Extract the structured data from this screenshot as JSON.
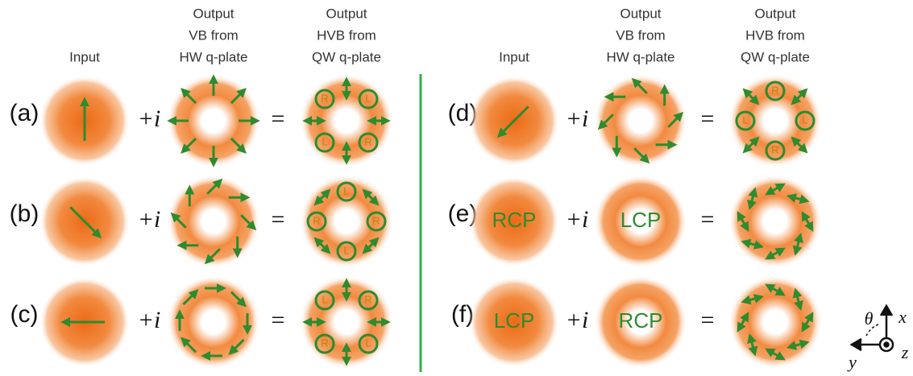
{
  "panels": [
    {
      "headers": [
        [
          "Input"
        ],
        [
          "Output",
          "VB from",
          "HW q-plate"
        ],
        [
          "Output",
          "HVB from",
          "QW q-plate"
        ]
      ],
      "rows": [
        {
          "label": "(a)",
          "plus": "+i",
          "equals": "=",
          "hvb_labels": [
            "R",
            "L",
            "L",
            "R"
          ]
        },
        {
          "label": "(b)",
          "plus": "+i",
          "equals": "=",
          "hvb_labels": [
            "L",
            "R",
            "L",
            "R"
          ]
        },
        {
          "label": "(c)",
          "plus": "+i",
          "equals": "=",
          "hvb_labels": [
            "L",
            "R",
            "R",
            "L"
          ]
        }
      ]
    },
    {
      "headers": [
        [
          "Input"
        ],
        [
          "Output",
          "VB from",
          "HW q-plate"
        ],
        [
          "Output",
          "HVB from",
          "QW q-plate"
        ]
      ],
      "rows": [
        {
          "label": "(d)",
          "plus": "+i",
          "equals": "=",
          "hvb_labels": [
            "R",
            "L",
            "R",
            "L"
          ]
        },
        {
          "label": "(e)",
          "plus": "+i",
          "equals": "=",
          "input_text": "RCP",
          "vb_text": "LCP"
        },
        {
          "label": "(f)",
          "plus": "+i",
          "equals": "=",
          "input_text": "LCP",
          "vb_text": "RCP"
        }
      ]
    }
  ],
  "axes": {
    "theta": "θ",
    "x": "x",
    "y": "y",
    "z": "z"
  }
}
